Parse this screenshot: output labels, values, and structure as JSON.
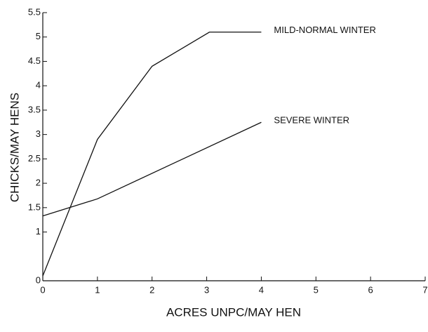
{
  "chart_data": {
    "type": "line",
    "x_label": "ACRES UNPC/MAY HEN",
    "y_label": "CHICKS/MAY HENS",
    "xlim": [
      0,
      7
    ],
    "xticks": [
      0,
      1,
      2,
      3,
      4,
      5,
      6,
      7
    ],
    "ylim": [
      0,
      5.5
    ],
    "yticks": [
      0,
      1,
      1.5,
      2,
      2.5,
      3,
      3.5,
      4,
      4.5,
      5,
      5.5
    ],
    "grid": false,
    "series": [
      {
        "name": "MILD-NORMAL WINTER",
        "color": "#111111",
        "x": [
          0,
          1,
          2,
          3.05,
          4
        ],
        "values": [
          0.1,
          2.9,
          4.4,
          5.1,
          5.1
        ]
      },
      {
        "name": "SEVERE WINTER",
        "color": "#111111",
        "x": [
          0,
          1,
          4
        ],
        "values": [
          1.33,
          1.68,
          3.25
        ]
      }
    ]
  }
}
